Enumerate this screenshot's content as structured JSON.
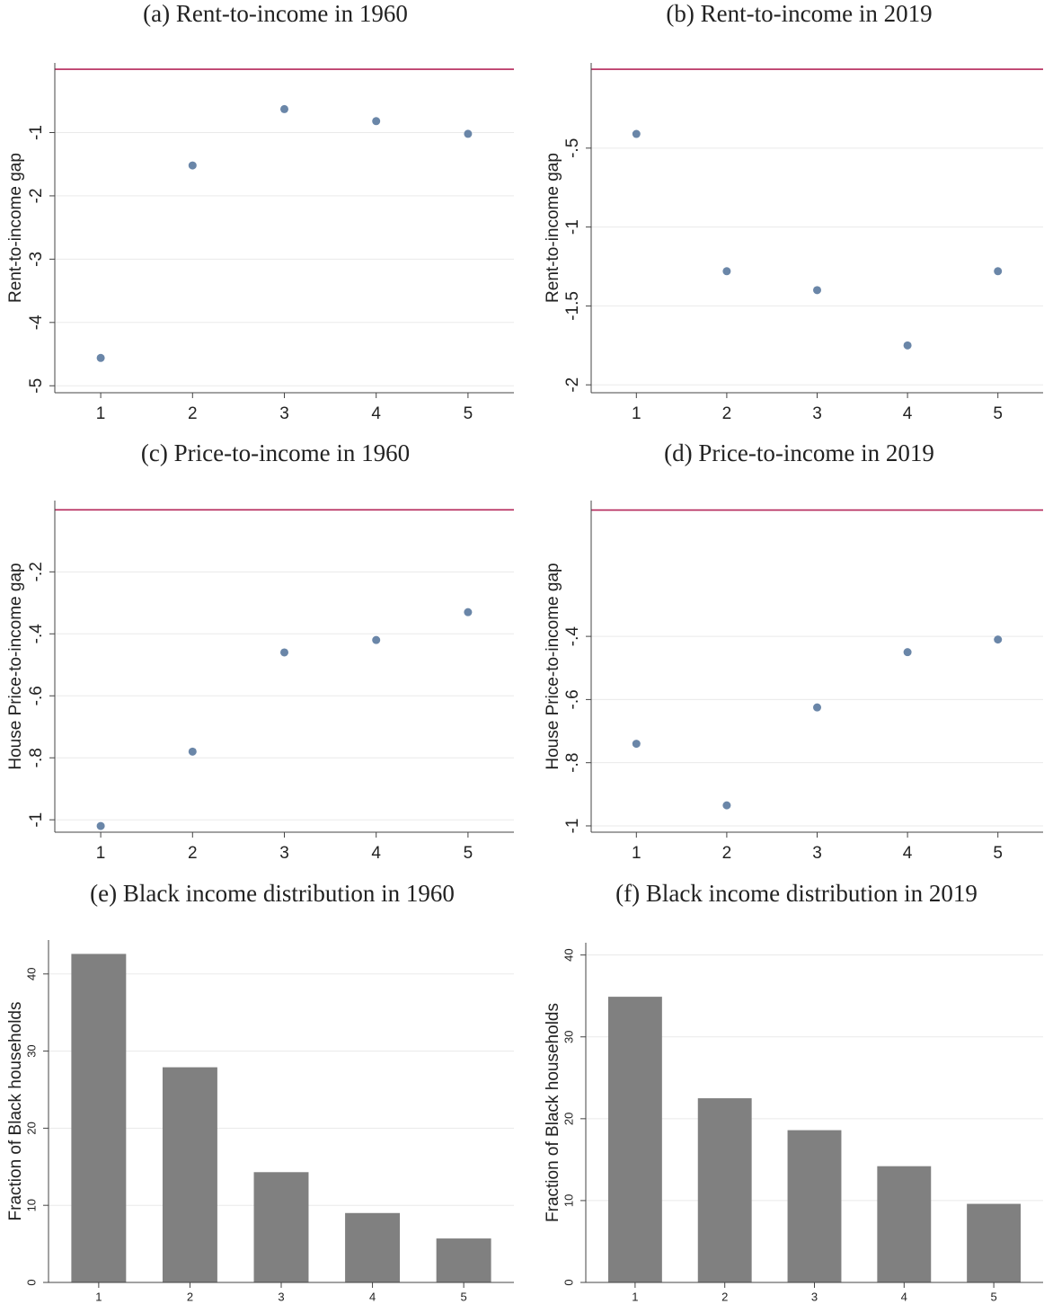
{
  "chart_data": [
    {
      "type": "scatter",
      "title": "(a) Rent-to-income in 1960",
      "y_label": "Rent-to-income gap",
      "x": [
        1,
        2,
        3,
        4,
        5
      ],
      "values": [
        -4.56,
        -1.52,
        -0.63,
        -0.82,
        -1.02
      ],
      "color": "#6a86a8",
      "xlim": [
        0.5,
        5.5
      ],
      "xticks": [
        1,
        2,
        3,
        4,
        5
      ],
      "ylim": [
        -5.11,
        0.1
      ],
      "yticks": [
        -1,
        -2,
        -3,
        -4,
        -5
      ],
      "hline": 0,
      "hline_color": "#b5275a",
      "grid": true
    },
    {
      "type": "scatter",
      "title": "(b) Rent-to-income in 2019",
      "y_label": "Rent-to-income gap",
      "x": [
        1,
        2,
        3,
        4,
        5
      ],
      "values": [
        -0.41,
        -1.28,
        -1.4,
        -1.75,
        -1.28
      ],
      "color": "#6a86a8",
      "xlim": [
        0.5,
        5.5
      ],
      "xticks": [
        1,
        2,
        3,
        4,
        5
      ],
      "ylim": [
        -2.05,
        0.04
      ],
      "yticks": [
        {
          "value": -0.5,
          "label": "-.5"
        },
        -1,
        -1.5,
        -2
      ],
      "hline": 0,
      "hline_color": "#b5275a",
      "grid": true
    },
    {
      "type": "scatter",
      "title": "(c) Price-to-income in 1960",
      "y_label": "House Price-to-income gap",
      "x": [
        1,
        2,
        3,
        4,
        5
      ],
      "values": [
        -1.02,
        -0.78,
        -0.46,
        -0.42,
        -0.33
      ],
      "color": "#6a86a8",
      "xlim": [
        0.5,
        5.5
      ],
      "xticks": [
        1,
        2,
        3,
        4,
        5
      ],
      "ylim": [
        -1.04,
        0.03
      ],
      "yticks": [
        {
          "value": -0.2,
          "label": "-.2"
        },
        {
          "value": -0.4,
          "label": "-.4"
        },
        {
          "value": -0.6,
          "label": "-.6"
        },
        {
          "value": -0.8,
          "label": "-.8"
        },
        -1
      ],
      "hline": 0,
      "hline_color": "#b5275a",
      "grid": true
    },
    {
      "type": "scatter",
      "title": "(d) Price-to-income in 2019",
      "y_label": "House Price-to-income gap",
      "x": [
        1,
        2,
        3,
        4,
        5
      ],
      "values": [
        -0.74,
        -0.935,
        -0.625,
        -0.45,
        -0.41
      ],
      "color": "#6a86a8",
      "xlim": [
        0.5,
        5.5
      ],
      "xticks": [
        1,
        2,
        3,
        4,
        5
      ],
      "ylim": [
        -1.02,
        0.03
      ],
      "yticks": [
        {
          "value": -0.4,
          "label": "-.4"
        },
        {
          "value": -0.6,
          "label": "-.6"
        },
        {
          "value": -0.8,
          "label": "-.8"
        },
        -1
      ],
      "hline": 0,
      "hline_color": "#b5275a",
      "grid": true
    },
    {
      "type": "bar",
      "title": "(e) Black income distribution in 1960",
      "y_label": "Fraction of Black households",
      "x": [
        1,
        2,
        3,
        4,
        5
      ],
      "values": [
        42.6,
        27.9,
        14.3,
        9.0,
        5.7
      ],
      "color": "#808080",
      "xlim": [
        0.45,
        5.55
      ],
      "xticks": [
        1,
        2,
        3,
        4,
        5
      ],
      "ylim": [
        0,
        44.4
      ],
      "yticks": [
        0,
        10,
        20,
        30,
        40
      ],
      "grid": true
    },
    {
      "type": "bar",
      "title": "(f) Black income distribution in 2019",
      "y_label": "Fraction of Black households",
      "x": [
        1,
        2,
        3,
        4,
        5
      ],
      "values": [
        34.9,
        22.5,
        18.6,
        14.2,
        9.6
      ],
      "color": "#808080",
      "xlim": [
        0.45,
        5.55
      ],
      "xticks": [
        1,
        2,
        3,
        4,
        5
      ],
      "ylim": [
        0,
        41.5
      ],
      "yticks": [
        0,
        10,
        20,
        30,
        40
      ],
      "grid": true
    }
  ]
}
